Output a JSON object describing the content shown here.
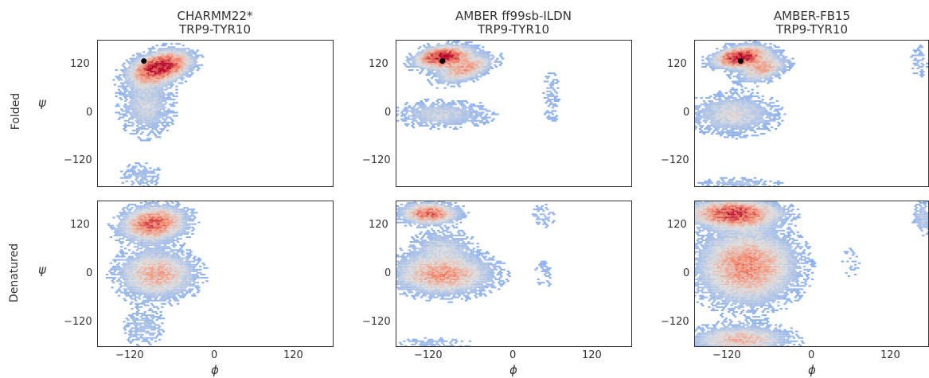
{
  "columns": [
    {
      "title": "CHARMM22*",
      "subtitle": "TRP9-TYR10"
    },
    {
      "title": "AMBER ff99sb-ILDN",
      "subtitle": "TRP9-TYR10"
    },
    {
      "title": "AMBER-FB15",
      "subtitle": "TRP9-TYR10"
    }
  ],
  "rows": [
    "Folded",
    "Denatured"
  ],
  "axis": {
    "xlabel": "ϕ",
    "ylabel": "ψ",
    "yticks": [
      "120",
      "0",
      "−120"
    ],
    "xticks": [
      "−120",
      "0",
      "120"
    ]
  },
  "colors": {
    "low": "#7aa6f0",
    "mid": "#dcdcdc",
    "high": "#b40426",
    "marker": "#000000"
  },
  "chart_data": [
    {
      "type": "heatmap",
      "title": "CHARMM22* TRP9-TYR10",
      "row": "Folded",
      "xlabel": "ϕ",
      "ylabel": "ψ",
      "xlim": [
        -180,
        180
      ],
      "ylim": [
        -180,
        180
      ],
      "xticks": [
        -120,
        0,
        120
      ],
      "yticks": [
        -120,
        0,
        120
      ],
      "marker": {
        "x": -110,
        "y": 130
      },
      "densities": [
        {
          "x": -85,
          "y": 115,
          "sx": 30,
          "sy": 20,
          "w": 1.0,
          "rot": -0.6
        },
        {
          "x": -105,
          "y": 20,
          "sx": 25,
          "sy": 45,
          "w": 0.25,
          "rot": 0
        },
        {
          "x": -115,
          "y": -150,
          "sx": 20,
          "sy": 20,
          "w": 0.15,
          "rot": 0
        },
        {
          "x": 55,
          "y": 55,
          "sx": 8,
          "sy": 8,
          "w": 0.05,
          "rot": 0
        }
      ]
    },
    {
      "type": "heatmap",
      "title": "AMBER ff99sb-ILDN TRP9-TYR10",
      "row": "Folded",
      "xlabel": "ϕ",
      "ylabel": "ψ",
      "xlim": [
        -180,
        180
      ],
      "ylim": [
        -180,
        180
      ],
      "xticks": [
        -120,
        0,
        120
      ],
      "yticks": [
        -120,
        0,
        120
      ],
      "marker": {
        "x": -110,
        "y": 130
      },
      "densities": [
        {
          "x": -110,
          "y": 140,
          "sx": 25,
          "sy": 15,
          "w": 1.0,
          "rot": -0.3
        },
        {
          "x": -75,
          "y": 110,
          "sx": 30,
          "sy": 15,
          "w": 0.5,
          "rot": -0.6
        },
        {
          "x": -110,
          "y": 0,
          "sx": 45,
          "sy": 20,
          "w": 0.25,
          "rot": 0
        },
        {
          "x": 55,
          "y": 50,
          "sx": 10,
          "sy": 40,
          "w": 0.1,
          "rot": 0
        },
        {
          "x": 55,
          "y": -10,
          "sx": 8,
          "sy": 8,
          "w": 0.05,
          "rot": 0
        }
      ]
    },
    {
      "type": "heatmap",
      "title": "AMBER-FB15 TRP9-TYR10",
      "row": "Folded",
      "xlabel": "ϕ",
      "ylabel": "ψ",
      "xlim": [
        -180,
        180
      ],
      "ylim": [
        -180,
        180
      ],
      "xticks": [
        -120,
        0,
        120
      ],
      "yticks": [
        -120,
        0,
        120
      ],
      "marker": {
        "x": -110,
        "y": 130
      },
      "densities": [
        {
          "x": -110,
          "y": 140,
          "sx": 25,
          "sy": 15,
          "w": 1.0,
          "rot": -0.3
        },
        {
          "x": -75,
          "y": 110,
          "sx": 25,
          "sy": 15,
          "w": 0.45,
          "rot": -0.6
        },
        {
          "x": -120,
          "y": 0,
          "sx": 40,
          "sy": 30,
          "w": 0.3,
          "rot": 0
        },
        {
          "x": -110,
          "y": -170,
          "sx": 40,
          "sy": 10,
          "w": 0.15,
          "rot": 0
        },
        {
          "x": 165,
          "y": 130,
          "sx": 10,
          "sy": 30,
          "w": 0.1,
          "rot": 0
        }
      ]
    },
    {
      "type": "heatmap",
      "title": "CHARMM22* TRP9-TYR10",
      "row": "Denatured",
      "xlabel": "ϕ",
      "ylabel": "ψ",
      "xlim": [
        -180,
        180
      ],
      "ylim": [
        -180,
        180
      ],
      "xticks": [
        -120,
        0,
        120
      ],
      "yticks": [
        -120,
        0,
        120
      ],
      "densities": [
        {
          "x": -95,
          "y": 125,
          "sx": 30,
          "sy": 25,
          "w": 0.75,
          "rot": -0.4
        },
        {
          "x": -90,
          "y": 0,
          "sx": 35,
          "sy": 35,
          "w": 0.5,
          "rot": 0
        },
        {
          "x": -110,
          "y": -130,
          "sx": 20,
          "sy": 30,
          "w": 0.15,
          "rot": 0
        },
        {
          "x": 50,
          "y": 140,
          "sx": 8,
          "sy": 8,
          "w": 0.05,
          "rot": 0
        }
      ]
    },
    {
      "type": "heatmap",
      "title": "AMBER ff99sb-ILDN TRP9-TYR10",
      "row": "Denatured",
      "xlabel": "ϕ",
      "ylabel": "ψ",
      "xlim": [
        -180,
        180
      ],
      "ylim": [
        -180,
        180
      ],
      "xticks": [
        -120,
        0,
        120
      ],
      "yticks": [
        -120,
        0,
        120
      ],
      "densities": [
        {
          "x": -130,
          "y": 150,
          "sx": 25,
          "sy": 15,
          "w": 0.75,
          "rot": 0
        },
        {
          "x": -110,
          "y": 0,
          "sx": 45,
          "sy": 30,
          "w": 0.55,
          "rot": 0
        },
        {
          "x": -110,
          "y": 70,
          "sx": 30,
          "sy": 25,
          "w": 0.2,
          "rot": 0
        },
        {
          "x": 45,
          "y": 145,
          "sx": 12,
          "sy": 20,
          "w": 0.12,
          "rot": 0
        },
        {
          "x": 45,
          "y": 0,
          "sx": 10,
          "sy": 25,
          "w": 0.1,
          "rot": 0
        },
        {
          "x": -120,
          "y": -170,
          "sx": 40,
          "sy": 10,
          "w": 0.12,
          "rot": 0
        }
      ]
    },
    {
      "type": "heatmap",
      "title": "AMBER-FB15 TRP9-TYR10",
      "row": "Denatured",
      "xlabel": "ϕ",
      "ylabel": "ψ",
      "xlim": [
        -180,
        180
      ],
      "ylim": [
        -180,
        180
      ],
      "xticks": [
        -120,
        0,
        120
      ],
      "yticks": [
        -120,
        0,
        120
      ],
      "densities": [
        {
          "x": -120,
          "y": 150,
          "sx": 40,
          "sy": 20,
          "w": 0.85,
          "rot": 0
        },
        {
          "x": -100,
          "y": 20,
          "sx": 45,
          "sy": 55,
          "w": 0.6,
          "rot": 0
        },
        {
          "x": -110,
          "y": -160,
          "sx": 45,
          "sy": 20,
          "w": 0.45,
          "rot": 0
        },
        {
          "x": 170,
          "y": 140,
          "sx": 10,
          "sy": 25,
          "w": 0.2,
          "rot": 0
        },
        {
          "x": 60,
          "y": 30,
          "sx": 15,
          "sy": 40,
          "w": 0.06,
          "rot": 0
        }
      ]
    }
  ]
}
